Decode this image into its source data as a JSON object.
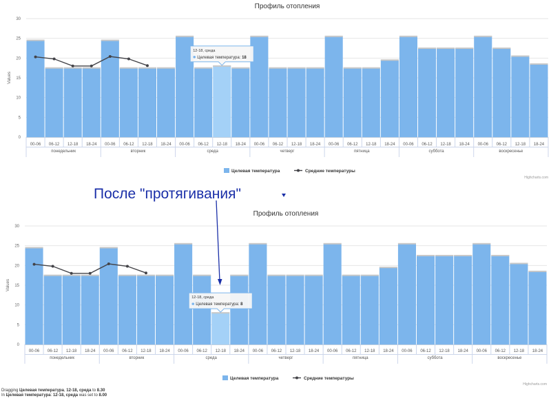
{
  "annotation": {
    "text": "После \"протягивания\"",
    "color": "#1a2fa8"
  },
  "credits": "Highcharts.com",
  "status": {
    "line1": {
      "prefix": "Dragging ",
      "series": "Целевая температура",
      "sep1": ", ",
      "point": "12-18, среда",
      "mid": " to ",
      "value": "8.30"
    },
    "line2": {
      "prefix": "In ",
      "series": "Целевая температура",
      "sep1": ": ",
      "point": "12-18, среда",
      "mid": " was set to ",
      "value": "8.00"
    }
  },
  "chart_data": [
    {
      "type": "bar",
      "title": "Профиль отопления",
      "ylabel": "Values",
      "ylim": [
        0,
        30
      ],
      "yticks": [
        0,
        5,
        10,
        15,
        20,
        25,
        30
      ],
      "grid": true,
      "legend_placement": "bottom-center",
      "days": [
        "понедельник",
        "вторник",
        "среда",
        "четверг",
        "пятница",
        "суббота",
        "воскресенье"
      ],
      "periods": [
        "00-06",
        "06-12",
        "12-18",
        "18-24"
      ],
      "series": [
        {
          "name": "Целевая температура",
          "type": "bar",
          "color": "#7cb5ec",
          "values": [
            24.5,
            17.5,
            17.5,
            17.5,
            24.5,
            17.5,
            17.5,
            17.5,
            25.5,
            17.5,
            18,
            17.5,
            25.5,
            17.5,
            17.5,
            17.5,
            25.5,
            17.5,
            17.5,
            19.5,
            25.5,
            22.5,
            22.5,
            22.5,
            25.5,
            22.5,
            20.5,
            18.5
          ]
        },
        {
          "name": "Средние температуры",
          "type": "line",
          "color": "#434348",
          "values": [
            20.3,
            19.8,
            18,
            18,
            20.4,
            19.8,
            18.1,
            null,
            null,
            null,
            null,
            null,
            null,
            null,
            null,
            null,
            null,
            null,
            null,
            null,
            null,
            null,
            null,
            null,
            null,
            null,
            null,
            null
          ]
        }
      ],
      "tooltip": {
        "index": 10,
        "header": "12-18, среда",
        "series": "Целевая температура",
        "value": "18"
      }
    },
    {
      "type": "bar",
      "title": "Профиль отопления",
      "ylabel": "Values",
      "ylim": [
        0,
        30
      ],
      "yticks": [
        0,
        5,
        10,
        15,
        20,
        25,
        30
      ],
      "grid": true,
      "legend_placement": "bottom-center",
      "days": [
        "понедельник",
        "вторник",
        "среда",
        "четверг",
        "пятница",
        "суббота",
        "воскресенье"
      ],
      "periods": [
        "00-06",
        "06-12",
        "12-18",
        "18-24"
      ],
      "series": [
        {
          "name": "Целевая температура",
          "type": "bar",
          "color": "#7cb5ec",
          "values": [
            24.5,
            17.5,
            17.5,
            17.5,
            24.5,
            17.5,
            17.5,
            17.5,
            25.5,
            17.5,
            8,
            17.5,
            25.5,
            17.5,
            17.5,
            17.5,
            25.5,
            17.5,
            17.5,
            19.5,
            25.5,
            22.5,
            22.5,
            22.5,
            25.5,
            22.5,
            20.5,
            18.5
          ]
        },
        {
          "name": "Средние температуры",
          "type": "line",
          "color": "#434348",
          "values": [
            20.3,
            19.8,
            18,
            18,
            20.4,
            19.8,
            18.1,
            null,
            null,
            null,
            null,
            null,
            null,
            null,
            null,
            null,
            null,
            null,
            null,
            null,
            null,
            null,
            null,
            null,
            null,
            null,
            null,
            null
          ]
        }
      ],
      "tooltip": {
        "index": 10,
        "header": "12-18, среда",
        "series": "Целевая температура",
        "value": "8"
      }
    }
  ]
}
